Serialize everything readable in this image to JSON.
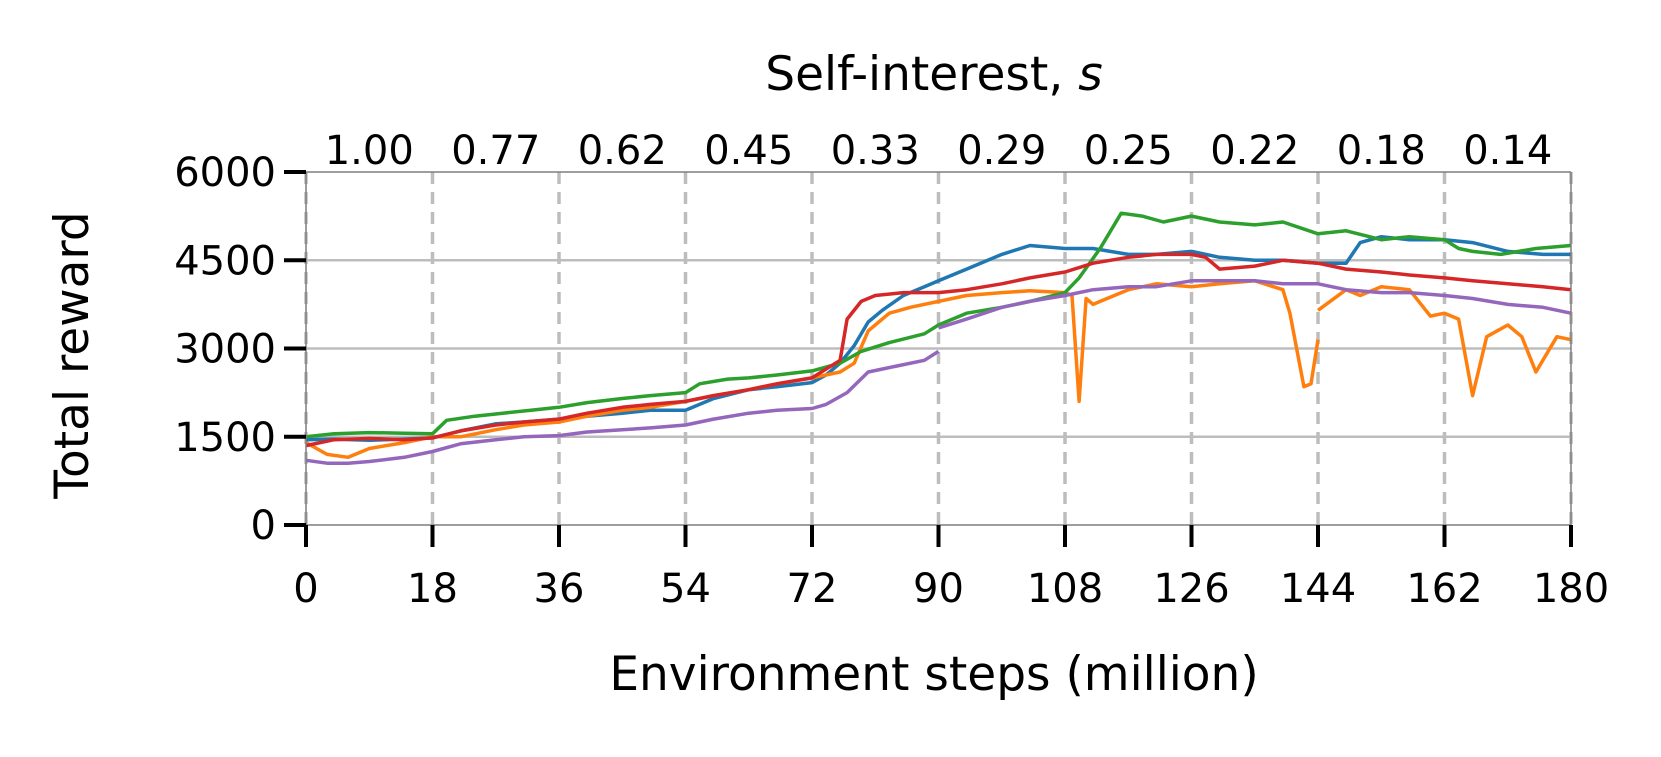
{
  "chart_data": {
    "type": "line",
    "title": "",
    "xlabel": "Environment steps (million)",
    "ylabel": "Total reward",
    "top_axis": {
      "label": "Self-interest, ",
      "label_italic": "s",
      "tick_labels": [
        "1.00",
        "0.77",
        "0.62",
        "0.45",
        "0.33",
        "0.29",
        "0.25",
        "0.22",
        "0.18",
        "0.14"
      ]
    },
    "xlim": [
      0,
      180
    ],
    "ylim": [
      0,
      6000
    ],
    "x_ticks": [
      0,
      18,
      36,
      54,
      72,
      90,
      108,
      126,
      144,
      162,
      180
    ],
    "y_ticks": [
      0,
      1500,
      3000,
      4500,
      6000
    ],
    "grid": {
      "y_solid": true,
      "x_dashed_at_ticks": true
    },
    "legend": "none",
    "series": [
      {
        "color": "#1f77b4",
        "x": [
          0,
          4,
          9,
          14,
          18,
          22,
          27,
          31,
          36,
          40,
          45,
          49,
          54,
          58,
          63,
          67,
          72,
          74,
          76,
          78,
          80,
          82,
          85,
          88,
          90,
          94,
          99,
          103,
          108,
          112,
          117,
          121,
          126,
          130,
          135,
          139,
          144,
          148,
          150,
          153,
          157,
          162,
          166,
          171,
          176,
          180
        ],
        "y": [
          1450,
          1460,
          1440,
          1460,
          1480,
          1600,
          1720,
          1750,
          1800,
          1850,
          1900,
          1950,
          1950,
          2150,
          2300,
          2350,
          2420,
          2550,
          2750,
          3050,
          3450,
          3650,
          3900,
          4050,
          4150,
          4350,
          4600,
          4750,
          4700,
          4700,
          4600,
          4600,
          4650,
          4550,
          4500,
          4500,
          4450,
          4450,
          4800,
          4900,
          4850,
          4850,
          4800,
          4650,
          4600,
          4600
        ]
      },
      {
        "color": "#ff7f0e",
        "x": [
          0,
          3,
          6,
          9,
          14,
          18,
          22,
          27,
          31,
          36,
          40,
          45,
          49,
          54,
          58,
          63,
          67,
          72,
          76,
          78,
          80,
          83,
          86,
          90,
          94,
          99,
          103,
          108,
          109,
          110,
          111,
          112,
          113,
          117,
          121,
          126,
          130,
          135,
          139,
          140,
          142,
          143,
          144,
          null,
          144,
          148,
          150,
          153,
          157,
          159,
          160,
          162,
          164,
          166,
          168,
          171,
          173,
          175,
          178,
          180
        ],
        "y": [
          1400,
          1200,
          1150,
          1300,
          1400,
          1500,
          1500,
          1620,
          1700,
          1750,
          1850,
          1950,
          2000,
          2100,
          2200,
          2300,
          2400,
          2500,
          2600,
          2750,
          3300,
          3600,
          3700,
          3800,
          3900,
          3950,
          3980,
          3950,
          3900,
          2100,
          3850,
          3750,
          3800,
          4000,
          4100,
          4050,
          4100,
          4150,
          4000,
          3600,
          2350,
          2400,
          3150,
          null,
          3650,
          4000,
          3900,
          4050,
          4000,
          3700,
          3550,
          3600,
          3500,
          2200,
          3200,
          3400,
          3200,
          2600,
          3200,
          3150
        ]
      },
      {
        "color": "#2ca02c",
        "x": [
          0,
          4,
          9,
          14,
          18,
          20,
          24,
          28,
          32,
          36,
          40,
          45,
          49,
          54,
          56,
          60,
          63,
          67,
          72,
          76,
          79,
          83,
          88,
          90,
          94,
          99,
          103,
          108,
          110,
          113,
          116,
          119,
          122,
          126,
          130,
          135,
          139,
          144,
          148,
          153,
          157,
          162,
          164,
          166,
          170,
          175,
          180
        ],
        "y": [
          1500,
          1550,
          1570,
          1560,
          1550,
          1780,
          1850,
          1900,
          1950,
          2000,
          2080,
          2150,
          2200,
          2250,
          2400,
          2480,
          2500,
          2550,
          2620,
          2750,
          2950,
          3100,
          3250,
          3400,
          3600,
          3700,
          3800,
          3950,
          4200,
          4700,
          5300,
          5250,
          5150,
          5250,
          5150,
          5100,
          5150,
          4950,
          5000,
          4850,
          4900,
          4850,
          4700,
          4650,
          4600,
          4700,
          4750
        ]
      },
      {
        "color": "#d62728",
        "x": [
          0,
          4,
          9,
          14,
          18,
          22,
          27,
          31,
          36,
          40,
          45,
          49,
          54,
          58,
          63,
          67,
          72,
          76,
          77,
          79,
          81,
          85,
          90,
          94,
          99,
          103,
          108,
          112,
          117,
          121,
          126,
          128,
          130,
          135,
          139,
          144,
          148,
          153,
          157,
          162,
          166,
          171,
          176,
          180
        ],
        "y": [
          1350,
          1450,
          1470,
          1450,
          1480,
          1600,
          1700,
          1750,
          1800,
          1900,
          2000,
          2050,
          2100,
          2200,
          2300,
          2400,
          2500,
          2800,
          3500,
          3800,
          3900,
          3950,
          3950,
          4000,
          4100,
          4200,
          4300,
          4450,
          4550,
          4600,
          4600,
          4550,
          4350,
          4400,
          4500,
          4450,
          4350,
          4300,
          4250,
          4200,
          4150,
          4100,
          4050,
          4000
        ]
      },
      {
        "color": "#9467bd",
        "x": [
          0,
          3,
          6,
          9,
          14,
          18,
          22,
          27,
          31,
          36,
          40,
          45,
          49,
          54,
          58,
          63,
          67,
          72,
          74,
          77,
          80,
          84,
          88,
          90,
          null,
          90,
          94,
          99,
          103,
          108,
          112,
          117,
          121,
          126,
          130,
          135,
          139,
          144,
          148,
          153,
          157,
          162,
          166,
          171,
          176,
          180
        ],
        "y": [
          1100,
          1050,
          1050,
          1080,
          1150,
          1250,
          1380,
          1450,
          1500,
          1520,
          1580,
          1620,
          1650,
          1700,
          1800,
          1900,
          1950,
          1980,
          2050,
          2250,
          2600,
          2700,
          2800,
          2950,
          null,
          3350,
          3500,
          3700,
          3800,
          3900,
          4000,
          4050,
          4050,
          4150,
          4150,
          4150,
          4100,
          4100,
          4000,
          3950,
          3950,
          3900,
          3850,
          3750,
          3700,
          3600
        ]
      }
    ]
  }
}
